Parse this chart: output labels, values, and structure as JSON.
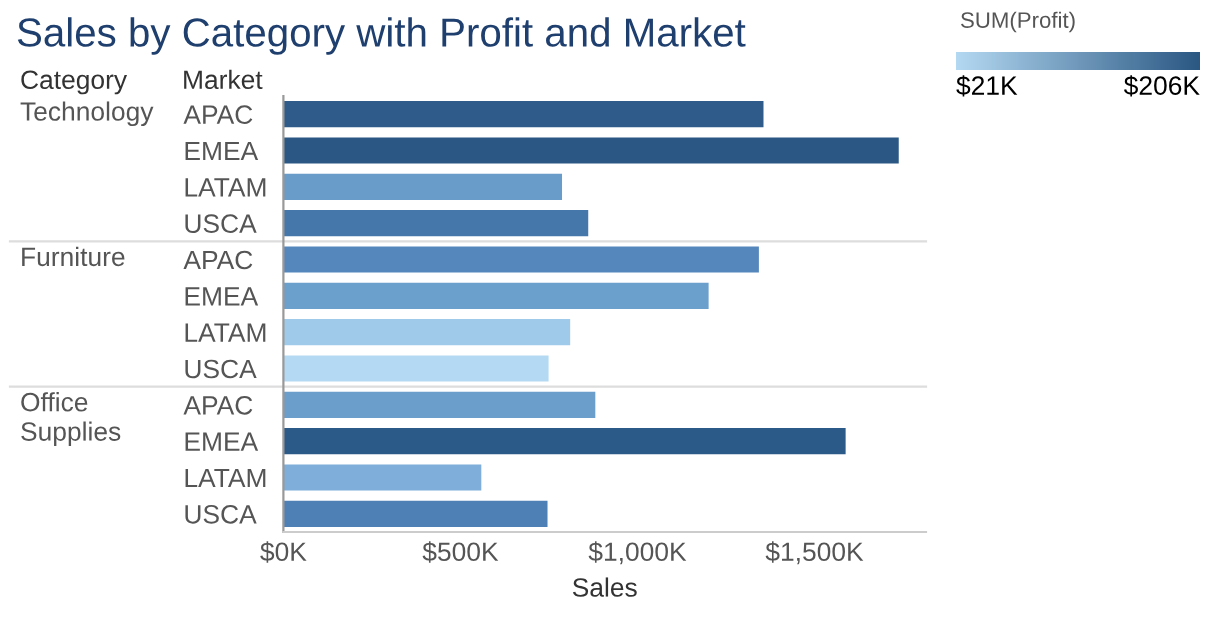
{
  "chart_data": {
    "type": "bar",
    "orientation": "horizontal",
    "title": "Sales by Category with Profit and Market",
    "xlabel": "Sales",
    "ylabel": "Market",
    "annotations": [
      "Category",
      "Technology",
      "Furniture",
      "Office Supplies"
    ],
    "categories": [
      "APAC",
      "EMEA",
      "LATAM",
      "USCA",
      "APAC",
      "EMEA",
      "LATAM",
      "USCA",
      "APAC",
      "EMEA",
      "LATAM",
      "USCA"
    ],
    "values": [
      1356,
      1738,
      787,
      861,
      1343,
      1201,
      810,
      749,
      881,
      1588,
      559,
      746
    ],
    "colors": [
      "#2e5b8a",
      "#2a5783",
      "#6a9cc9",
      "#4677ab",
      "#5587bd",
      "#6b9fcc",
      "#9fcae9",
      "#b4d9f2",
      "#6b9ecb",
      "#2c5a88",
      "#7eaed9",
      "#4f80b5"
    ],
    "xlim": [
      0,
      1815
    ],
    "xticks": [
      {
        "value": 0,
        "label": "$0K"
      },
      {
        "value": 500,
        "label": "$500K"
      },
      {
        "value": 1000,
        "label": "$1,000K"
      },
      {
        "value": 1500,
        "label": "$1,500K"
      }
    ],
    "clabel": "SUM(Profit)",
    "clim": [
      21,
      206
    ],
    "cticks": [
      {
        "value": 21,
        "label": "$21K"
      },
      {
        "value": 206,
        "label": "$206K"
      }
    ],
    "grid": false,
    "legend": false
  }
}
